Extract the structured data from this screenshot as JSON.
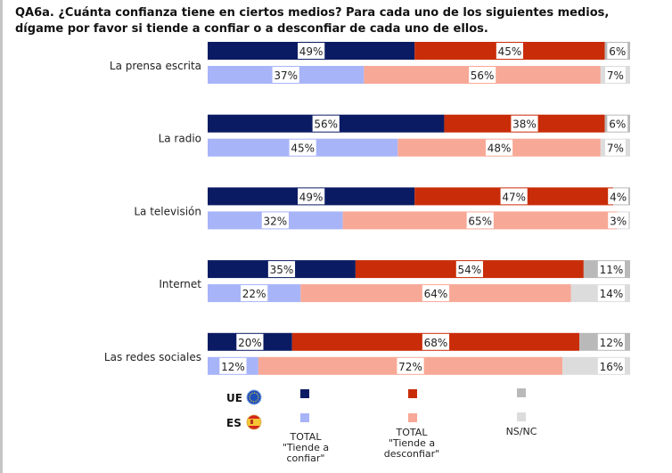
{
  "chart_data": {
    "type": "bar",
    "orientation": "horizontal-stacked-100",
    "title": "QA6a. ¿Cuánta confianza tiene en ciertos medios? Para cada uno de los siguientes medios, dígame por favor si tiende a confiar o a desconfiar de cada uno de ellos.",
    "xlabel": "",
    "ylabel": "",
    "xlim": [
      0,
      100
    ],
    "grid": false,
    "legend_position": "bottom",
    "categories": [
      "La prensa escrita",
      "La radio",
      "La televisión",
      "Internet",
      "Las redes sociales"
    ],
    "groups": [
      {
        "name": "UE",
        "flag": "eu-flag-icon"
      },
      {
        "name": "ES",
        "flag": "spain-flag-icon"
      }
    ],
    "series": [
      {
        "name": "TOTAL \"Tiende a confiar\"",
        "colors": {
          "UE": "#0b1b63",
          "ES": "#a8b4f8"
        },
        "values": {
          "UE": [
            49,
            56,
            49,
            35,
            20
          ],
          "ES": [
            37,
            45,
            32,
            22,
            12
          ]
        }
      },
      {
        "name": "TOTAL \"Tiende a desconfiar\"",
        "colors": {
          "UE": "#c92c08",
          "ES": "#f8a896"
        },
        "values": {
          "UE": [
            45,
            38,
            47,
            54,
            68
          ],
          "ES": [
            56,
            48,
            65,
            64,
            72
          ]
        }
      },
      {
        "name": "NS/NC",
        "colors": {
          "UE": "#b9b9b9",
          "ES": "#dcdcdc"
        },
        "values": {
          "UE": [
            6,
            6,
            4,
            11,
            12
          ],
          "ES": [
            7,
            7,
            3,
            14,
            16
          ]
        }
      }
    ]
  },
  "legend": {
    "ue_label": "UE",
    "es_label": "ES",
    "confiar_lines": [
      "TOTAL",
      "\"Tiende a",
      "confiar\""
    ],
    "desconfiar_lines": [
      "TOTAL",
      "\"Tiende a",
      "desconfiar\""
    ],
    "nsnc_lines": [
      "NS/NC"
    ]
  }
}
